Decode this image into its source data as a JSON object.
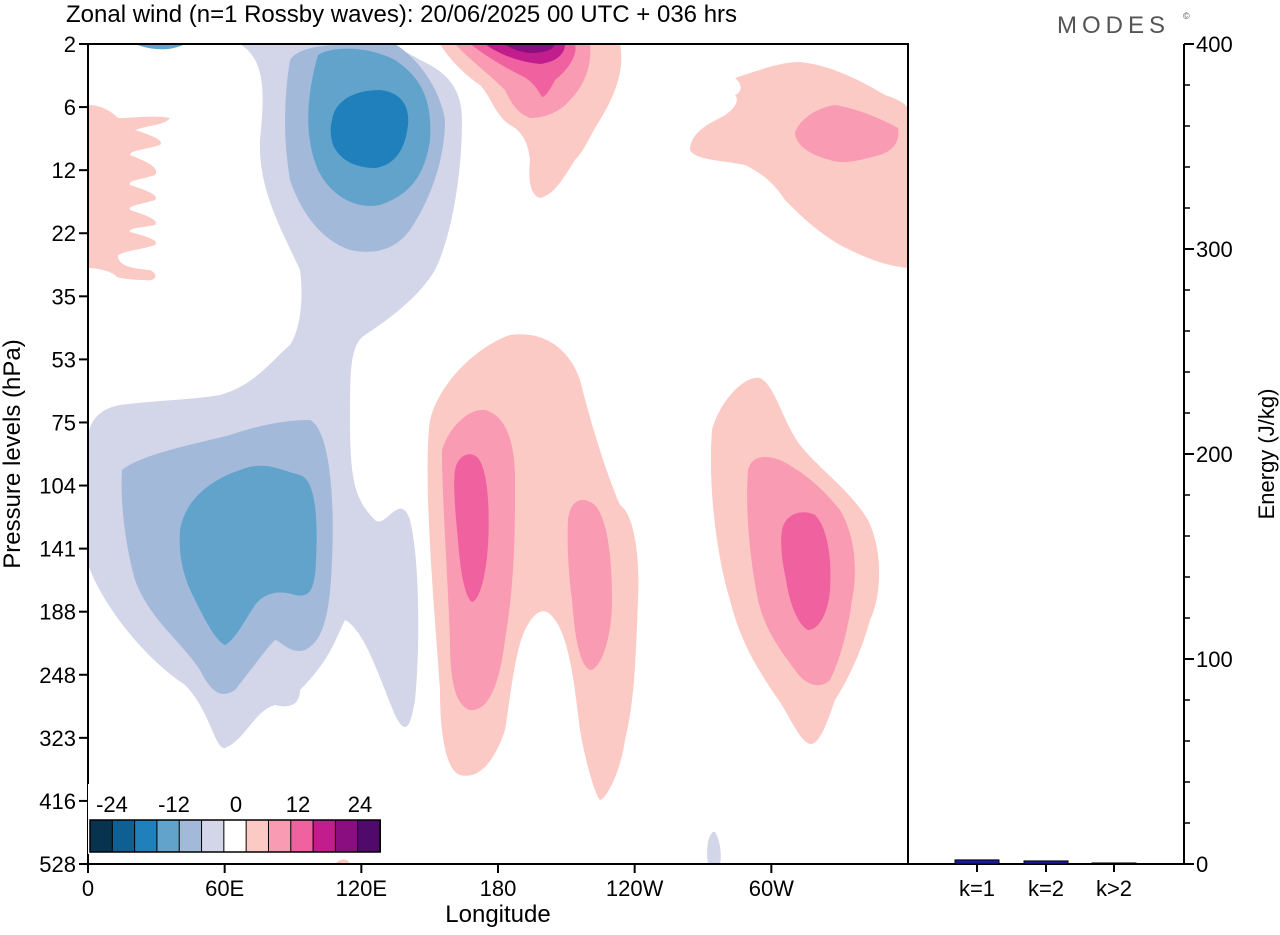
{
  "title": "Zonal wind (n=1 Rossby waves):  20/06/2025  00 UTC  + 036 hrs",
  "logo": "MODES",
  "chart_data": [
    {
      "type": "heatmap",
      "xlabel": "Longitude",
      "ylabel": "Pressure levels (hPa)",
      "x_ticks": [
        {
          "label": "0",
          "lon": 0
        },
        {
          "label": "60E",
          "lon": 60
        },
        {
          "label": "120E",
          "lon": 120
        },
        {
          "label": "180",
          "lon": 180
        },
        {
          "label": "120W",
          "lon": 240
        },
        {
          "label": "60W",
          "lon": 300
        }
      ],
      "xlim": [
        0,
        360
      ],
      "y_levels": [
        "2",
        "6",
        "12",
        "22",
        "35",
        "53",
        "75",
        "104",
        "141",
        "188",
        "248",
        "323",
        "416",
        "528"
      ],
      "colorbar": {
        "tick_labels": [
          "-24",
          "-12",
          "0",
          "12",
          "24"
        ],
        "colors": [
          "#08334f",
          "#0e5f94",
          "#1f80bb",
          "#62a3cc",
          "#a2b9da",
          "#d3d5e8",
          "#ffffff",
          "#fbcac5",
          "#f89bb3",
          "#f061a0",
          "#c11d8c",
          "#8a0e80",
          "#4f0a6b"
        ]
      },
      "regions": [
        {
          "sign": "negative",
          "lon": [
            55,
            130
          ],
          "level": "6-22",
          "peak": "-18"
        },
        {
          "sign": "negative",
          "lon": [
            20,
            100
          ],
          "level": "104-248",
          "peak": "-12"
        },
        {
          "sign": "positive",
          "lon": [
            165,
            210
          ],
          "level": "2-12",
          "peak": "24"
        },
        {
          "sign": "positive",
          "lon": [
            160,
            185
          ],
          "level": "104-188",
          "peak": "12"
        },
        {
          "sign": "positive",
          "lon": [
            205,
            225
          ],
          "level": "141-248",
          "peak": "6"
        },
        {
          "sign": "positive",
          "lon": [
            295,
            320
          ],
          "level": "141-188",
          "peak": "12"
        },
        {
          "sign": "positive",
          "lon": [
            300,
            350
          ],
          "level": "6-22",
          "peak": "6"
        }
      ]
    },
    {
      "type": "bar",
      "ylabel": "Energy (J/kg)",
      "ylim": [
        0,
        400
      ],
      "y_ticks": [
        "0",
        "100",
        "200",
        "300",
        "400"
      ],
      "categories": [
        "k=1",
        "k=2",
        "k>2"
      ],
      "values": [
        2.0,
        1.5,
        0.5
      ],
      "bar_color": "#1a1aa0"
    }
  ]
}
